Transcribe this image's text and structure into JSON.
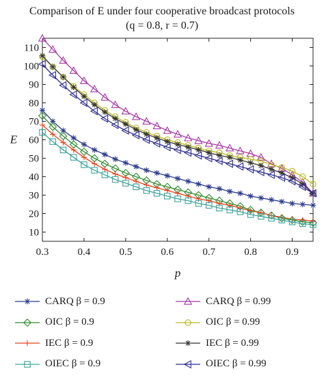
{
  "chart_data": {
    "type": "line",
    "title": "Comparison of E under four cooperative broadcast protocols",
    "subtitle": "(q = 0.8, r = 0.7)",
    "xlabel": "p",
    "ylabel": "E",
    "xlim": [
      0.3,
      0.95
    ],
    "ylim": [
      5,
      115
    ],
    "xticks": [
      0.3,
      0.4,
      0.5,
      0.6,
      0.7,
      0.8,
      0.9
    ],
    "yticks": [
      10,
      20,
      30,
      40,
      50,
      60,
      70,
      80,
      90,
      100,
      110
    ],
    "x": [
      0.3,
      0.325,
      0.35,
      0.375,
      0.4,
      0.425,
      0.45,
      0.475,
      0.5,
      0.525,
      0.55,
      0.575,
      0.6,
      0.625,
      0.65,
      0.675,
      0.7,
      0.725,
      0.75,
      0.775,
      0.8,
      0.825,
      0.85,
      0.875,
      0.9,
      0.925,
      0.95
    ],
    "grid": false,
    "legend_position": "bottom",
    "series": [
      {
        "name": "CARQ β = 0.9",
        "color": "#2b3a8c",
        "marker": "star",
        "values": [
          76,
          70,
          65,
          61,
          57.5,
          54.5,
          52,
          49.5,
          47.5,
          45.5,
          43.5,
          42,
          40.5,
          39,
          37.5,
          36,
          34.5,
          33.5,
          32,
          31,
          29.5,
          28.5,
          27.5,
          26.5,
          25.5,
          25,
          24.5
        ]
      },
      {
        "name": "CARQ β = 0.99",
        "color": "#a63aa6",
        "marker": "triangle",
        "values": [
          115,
          109,
          103,
          97.5,
          92,
          87.5,
          83,
          79,
          75.5,
          72.5,
          70,
          67.5,
          65,
          63,
          61,
          59.5,
          58,
          57,
          55.5,
          54,
          52.5,
          50.5,
          47,
          44.5,
          41,
          37,
          31
        ]
      },
      {
        "name": "OIC β = 0.9",
        "color": "#2e8b2e",
        "marker": "diamond",
        "values": [
          73,
          67,
          62,
          57.5,
          53.5,
          50,
          47,
          44.5,
          42,
          40,
          38,
          36,
          34.5,
          33,
          31.5,
          30,
          28.5,
          27,
          25.5,
          24,
          22,
          20.5,
          19,
          17.5,
          16.5,
          15.5,
          15
        ]
      },
      {
        "name": "OIC β = 0.99",
        "color": "#b8b820",
        "marker": "circle",
        "values": [
          105,
          99.5,
          94,
          89,
          84.5,
          80,
          76,
          72.5,
          69.5,
          66.5,
          64,
          62,
          60,
          58.5,
          57,
          55.5,
          54,
          53,
          51.5,
          50.5,
          49.5,
          48.5,
          46.5,
          45,
          43,
          40,
          36
        ]
      },
      {
        "name": "IEC β = 0.9",
        "color": "#e8401c",
        "marker": "plus",
        "values": [
          68,
          63,
          58.5,
          54.5,
          50.5,
          47,
          44,
          41.5,
          39.5,
          37.5,
          35.5,
          34,
          32.5,
          31,
          29.5,
          28,
          27,
          25.5,
          24.5,
          23,
          21.5,
          20.5,
          19,
          18,
          17,
          16.5,
          16
        ]
      },
      {
        "name": "IEC β = 0.99",
        "color": "#333333",
        "marker": "asterisk",
        "values": [
          105.5,
          99.5,
          94,
          88.5,
          83.5,
          79,
          75,
          71.5,
          68.5,
          65.5,
          63,
          61,
          59,
          57.5,
          56,
          54.5,
          53,
          51.5,
          50.5,
          49,
          47.5,
          46,
          44,
          42,
          39.5,
          36,
          31
        ]
      },
      {
        "name": "OIEC β = 0.9",
        "color": "#3aa39a",
        "marker": "square",
        "values": [
          64,
          59,
          54.5,
          50.5,
          46.5,
          43.5,
          41,
          38.5,
          36.5,
          34.5,
          32.5,
          31,
          29.5,
          28,
          27,
          25.5,
          24.5,
          23,
          22,
          21,
          19.5,
          18.5,
          17.5,
          16.5,
          15.5,
          14.5,
          14
        ]
      },
      {
        "name": "OIEC β = 0.99",
        "color": "#2a2a8c",
        "marker": "lefttriangle",
        "values": [
          101,
          95,
          89.5,
          84.5,
          80,
          75.5,
          71.5,
          68,
          65,
          62.5,
          60,
          58,
          56,
          54.5,
          53,
          51.5,
          50,
          48.5,
          47,
          45.5,
          44,
          42.5,
          41,
          39.5,
          37.5,
          34.5,
          31
        ]
      }
    ]
  }
}
